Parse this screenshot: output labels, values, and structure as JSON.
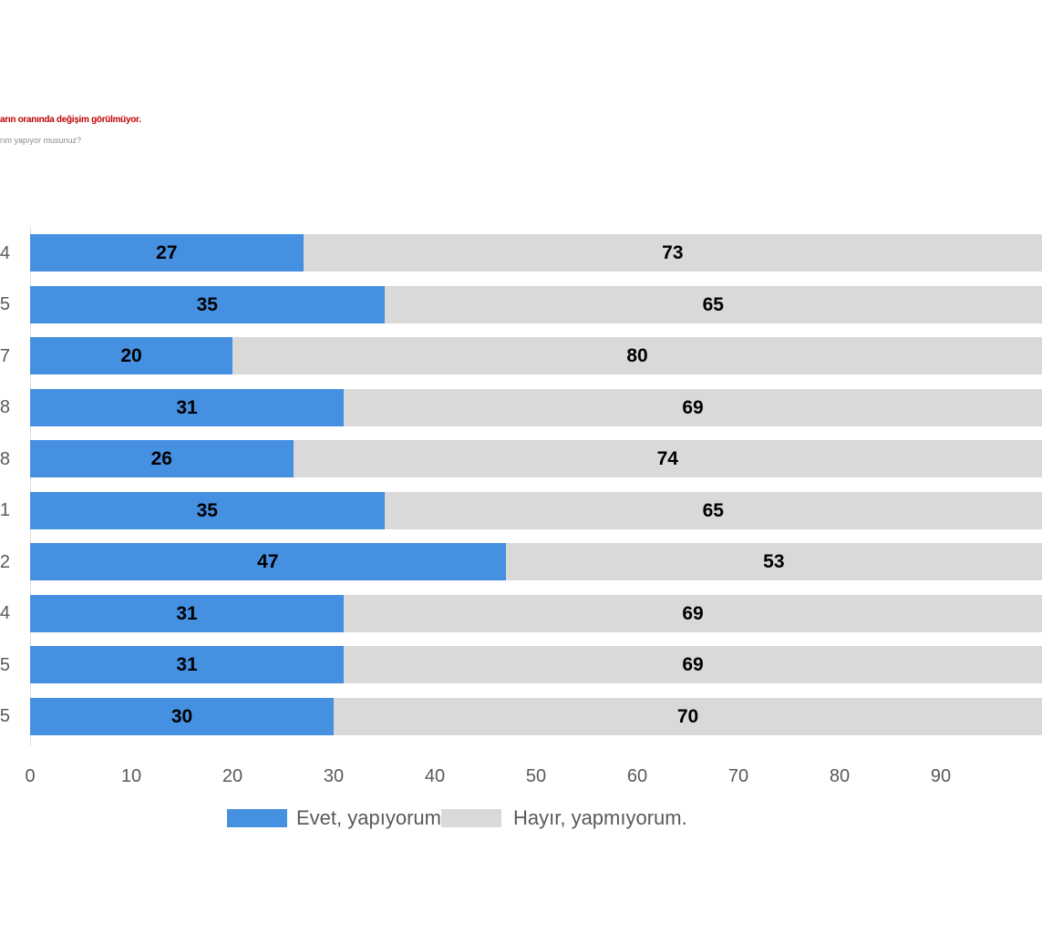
{
  "header": {
    "title_fragment": "arın oranında değişim görülmüyor.",
    "subtitle_fragment": "rım yapıyor musunuz?",
    "title_color": "#c00000"
  },
  "chart_data": {
    "type": "bar",
    "orientation": "horizontal",
    "stacked": true,
    "title": "",
    "xlabel": "",
    "ylabel": "",
    "x_range": [
      0,
      100
    ],
    "x_ticks": [
      "0",
      "10",
      "20",
      "30",
      "40",
      "50",
      "60",
      "70",
      "80",
      "90"
    ],
    "categories_visible": [
      "4",
      "5",
      "7",
      "8",
      "8",
      "1",
      "2",
      "4",
      "5",
      "5"
    ],
    "series": [
      {
        "name": "Evet, yapıyorum.",
        "color": "#4690e2",
        "values": [
          27,
          35,
          20,
          31,
          26,
          35,
          47,
          31,
          31,
          30
        ]
      },
      {
        "name": "Hayır, yapmıyorum.",
        "color": "#d9d9d9",
        "values": [
          73,
          65,
          80,
          69,
          74,
          65,
          53,
          69,
          69,
          70
        ]
      }
    ],
    "value_labels": true,
    "grid": false,
    "legend_position": "bottom"
  },
  "legend": {
    "evet_label": "Evet, yapıyorum.",
    "hayir_label": "Hayır, yapmıyorum."
  }
}
